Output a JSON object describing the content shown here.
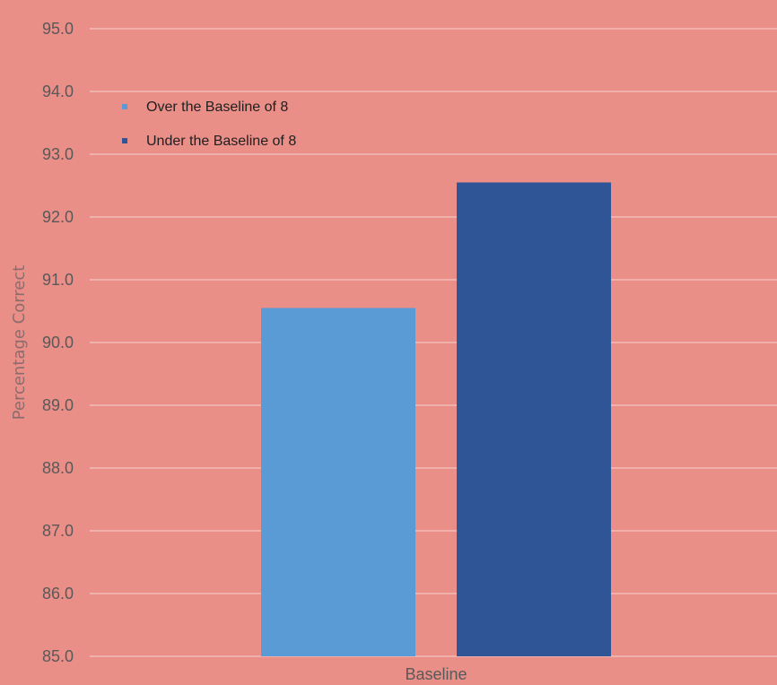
{
  "chart_data": {
    "type": "bar",
    "categories": [
      "Baseline"
    ],
    "series": [
      {
        "name": "Over the Baseline of 8",
        "values": [
          90.55
        ],
        "color": "#5b9bd5"
      },
      {
        "name": "Under the Baseline of 8",
        "values": [
          92.55
        ],
        "color": "#2f5597"
      }
    ],
    "title": "",
    "xlabel": "",
    "ylabel": "Percentage Correct",
    "ylim": [
      85.0,
      95.0
    ],
    "yticks": [
      "85.0",
      "86.0",
      "87.0",
      "88.0",
      "89.0",
      "90.0",
      "91.0",
      "92.0",
      "93.0",
      "94.0",
      "95.0"
    ],
    "grid": true,
    "legend_position": "top-left",
    "background_color": "#ea8e88"
  }
}
